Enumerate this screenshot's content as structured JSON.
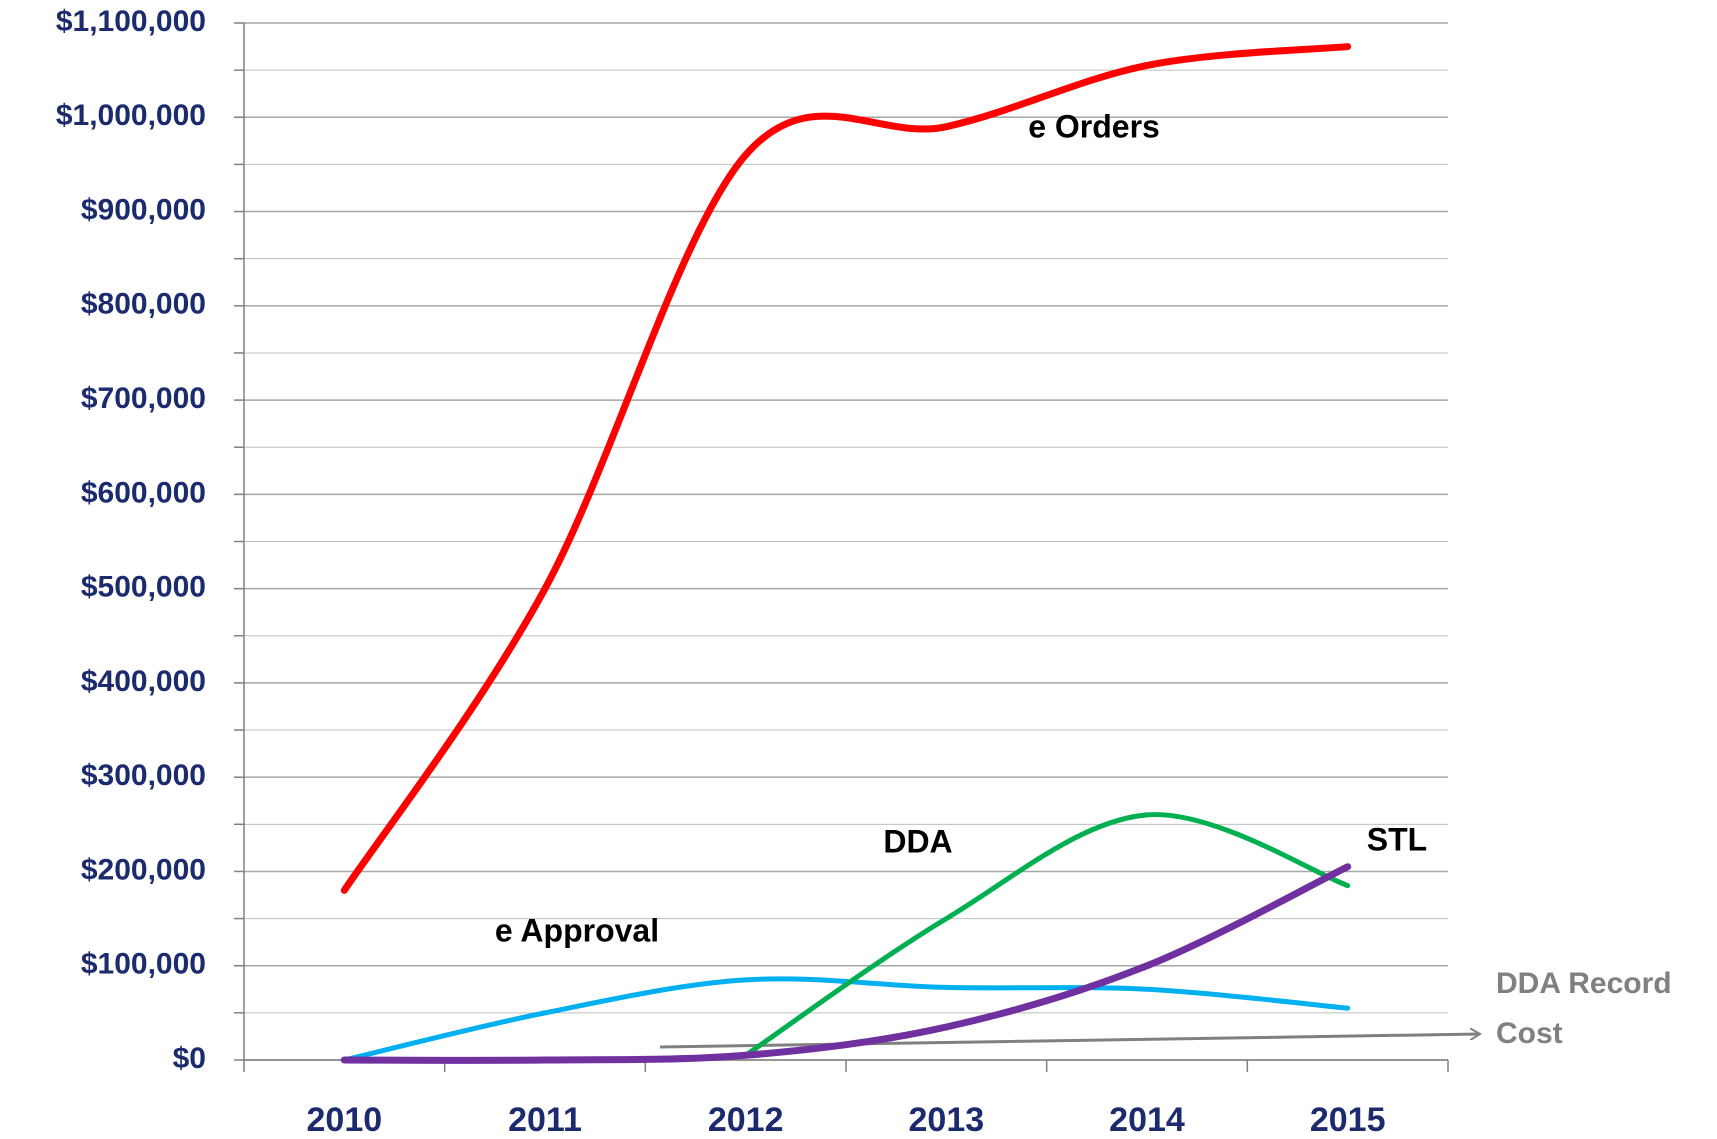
{
  "chart_data": {
    "type": "line",
    "categories": [
      "2010",
      "2011",
      "2012",
      "2013",
      "2014",
      "2015"
    ],
    "series": [
      {
        "name": "e Orders",
        "color": "#ff0000",
        "values": [
          180000,
          500000,
          960000,
          990000,
          1055000,
          1075000
        ]
      },
      {
        "name": "e Approval",
        "color": "#00b0f0",
        "values": [
          0,
          50000,
          85000,
          77000,
          75000,
          55000
        ]
      },
      {
        "name": "DDA",
        "color": "#00b050",
        "values": [
          null,
          null,
          5000,
          150000,
          260000,
          185000
        ]
      },
      {
        "name": "STL",
        "color": "#7030a0",
        "values": [
          0,
          0,
          5000,
          35000,
          100000,
          205000
        ]
      }
    ],
    "annotations": [
      "DDA Record",
      "Cost"
    ],
    "ylim": [
      0,
      1100000
    ],
    "yticks": [
      {
        "value": 0,
        "label": "$0"
      },
      {
        "value": 100000,
        "label": "$100,000"
      },
      {
        "value": 200000,
        "label": "$200,000"
      },
      {
        "value": 300000,
        "label": "$300,000"
      },
      {
        "value": 400000,
        "label": "$400,000"
      },
      {
        "value": 500000,
        "label": "$500,000"
      },
      {
        "value": 600000,
        "label": "$600,000"
      },
      {
        "value": 700000,
        "label": "$700,000"
      },
      {
        "value": 800000,
        "label": "$800,000"
      },
      {
        "value": 900000,
        "label": "$900,000"
      },
      {
        "value": 1000000,
        "label": "$1,000,000"
      },
      {
        "value": 1100000,
        "label": "$1,100,000"
      }
    ],
    "grid": true
  }
}
